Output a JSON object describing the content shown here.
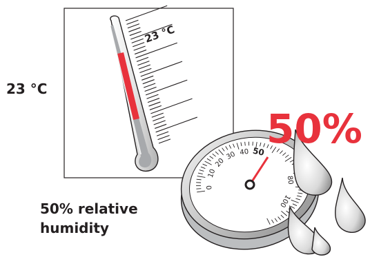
{
  "labels": {
    "temperature_value": "23 °C",
    "humidity_line1": "50% relative",
    "humidity_line2": "humidity"
  },
  "thermometer": {
    "reading_label": "23 °C",
    "reading_celsius": 23,
    "fluid_color": "#e8323c",
    "icon": "thermometer-icon"
  },
  "hygrometer": {
    "big_value": "50%",
    "big_value_color": "#e8323c",
    "reading_percent": 50,
    "dial_labels": [
      "0",
      "10",
      "20",
      "30",
      "40",
      "50",
      "80",
      "100"
    ],
    "icon": "hygrometer-dial-icon"
  },
  "droplets": {
    "icon": "water-drop-icon",
    "count": 4
  }
}
